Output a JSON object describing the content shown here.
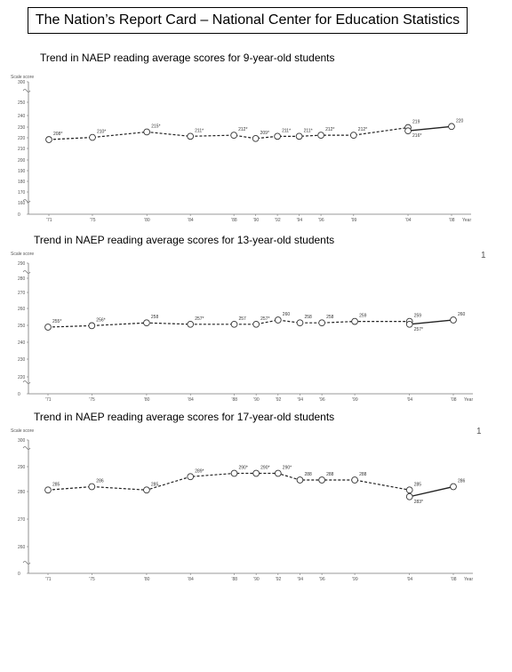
{
  "banner": "The Nation’s Report Card – National Center for Education Statistics",
  "chart_data": [
    {
      "type": "line",
      "title": "Trend in NAEP reading average scores for 9-year-old students",
      "ylabel": "Scale score",
      "xlabel": "Year",
      "ylim": [
        0,
        300
      ],
      "yticks": [
        "0",
        "160",
        "170",
        "180",
        "190",
        "200",
        "210",
        "220",
        "230",
        "240",
        "250",
        "300"
      ],
      "x": [
        1971,
        1975,
        1980,
        1984,
        1988,
        1990,
        1992,
        1994,
        1996,
        1999,
        2004,
        2004,
        2008
      ],
      "xticks": [
        "'71",
        "'75",
        "'80",
        "'84",
        "'88",
        "'90",
        "'92",
        "'94",
        "'96",
        "'99",
        "'04",
        "'08"
      ],
      "series": [
        {
          "values": [
            208,
            210,
            215,
            211,
            212,
            209,
            211,
            211,
            212,
            212,
            219,
            216,
            220
          ]
        }
      ],
      "labels": [
        "208*",
        "210*",
        "215*",
        "211*",
        "212*",
        "209*",
        "211*",
        "211*",
        "212*",
        "212*",
        "219",
        "216*",
        "220"
      ]
    },
    {
      "type": "line",
      "title": "Trend in NAEP reading average scores for 13-year-old students",
      "ylabel": "Scale score",
      "xlabel": "Year",
      "ylim": [
        0,
        300
      ],
      "yticks": [
        "0",
        "220",
        "230",
        "240",
        "250",
        "260",
        "270",
        "280",
        "290",
        "300"
      ],
      "x": [
        1971,
        1975,
        1980,
        1984,
        1988,
        1990,
        1992,
        1994,
        1996,
        1999,
        2004,
        2004,
        2008
      ],
      "xticks": [
        "'71",
        "'75",
        "'80",
        "'84",
        "'88",
        "'90",
        "'92",
        "'94",
        "'96",
        "'99",
        "'04",
        "'08"
      ],
      "series": [
        {
          "values": [
            255,
            256,
            258,
            257,
            257,
            257,
            260,
            258,
            258,
            259,
            259,
            257,
            260
          ]
        }
      ],
      "labels": [
        "255*",
        "256*",
        "258",
        "257*",
        "257",
        "257*",
        "260",
        "258",
        "258",
        "259",
        "259",
        "257*",
        "260"
      ]
    },
    {
      "type": "line",
      "title": "Trend in NAEP reading average scores for 17-year-old students",
      "ylabel": "Scale score",
      "xlabel": "Year",
      "ylim": [
        0,
        300
      ],
      "yticks": [
        "0",
        "260",
        "270",
        "280",
        "290",
        "300"
      ],
      "x": [
        1971,
        1975,
        1980,
        1984,
        1988,
        1990,
        1992,
        1994,
        1996,
        1999,
        2004,
        2004,
        2008
      ],
      "xticks": [
        "'71",
        "'75",
        "'80",
        "'84",
        "'88",
        "'90",
        "'92",
        "'94",
        "'96",
        "'99",
        "'04",
        "'08"
      ],
      "series": [
        {
          "values": [
            285,
            286,
            285,
            289,
            290,
            290,
            290,
            288,
            288,
            288,
            285,
            283,
            286
          ]
        }
      ],
      "labels": [
        "285",
        "286",
        "285",
        "289*",
        "290*",
        "290*",
        "290*",
        "288",
        "288",
        "288",
        "285",
        "283*",
        "286"
      ]
    }
  ],
  "page_marks": [
    "1",
    "1"
  ]
}
